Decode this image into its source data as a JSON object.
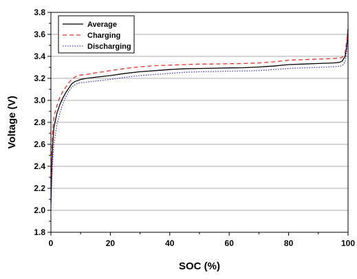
{
  "chart_data": {
    "type": "line",
    "xlabel": "SOC (%)",
    "ylabel": "Voltage (V)",
    "xlim": [
      0,
      100
    ],
    "ylim": [
      1.8,
      3.8
    ],
    "x_ticks": [
      0,
      20,
      40,
      60,
      80,
      100
    ],
    "y_ticks": [
      1.8,
      2.0,
      2.2,
      2.4,
      2.6,
      2.8,
      3.0,
      3.2,
      3.4,
      3.6,
      3.8
    ],
    "x_tick_labels": [
      "0",
      "20",
      "40",
      "60",
      "80",
      "100"
    ],
    "y_tick_labels": [
      "1.8",
      "2.0",
      "2.2",
      "2.4",
      "2.6",
      "2.8",
      "3.0",
      "3.2",
      "3.4",
      "3.6",
      "3.8"
    ],
    "grid": "horizontal",
    "legend_position": "top-left",
    "series": [
      {
        "name": "Average",
        "color": "#000000",
        "style": "solid",
        "points": [
          [
            0,
            2.07
          ],
          [
            0.3,
            2.4
          ],
          [
            0.6,
            2.6
          ],
          [
            1,
            2.75
          ],
          [
            2,
            2.88
          ],
          [
            3,
            2.96
          ],
          [
            4,
            3.02
          ],
          [
            5,
            3.07
          ],
          [
            6,
            3.11
          ],
          [
            7,
            3.15
          ],
          [
            8,
            3.17
          ],
          [
            9,
            3.18
          ],
          [
            10,
            3.19
          ],
          [
            12,
            3.2
          ],
          [
            15,
            3.21
          ],
          [
            20,
            3.225
          ],
          [
            25,
            3.245
          ],
          [
            30,
            3.26
          ],
          [
            35,
            3.27
          ],
          [
            40,
            3.28
          ],
          [
            45,
            3.287
          ],
          [
            50,
            3.29
          ],
          [
            55,
            3.292
          ],
          [
            60,
            3.295
          ],
          [
            65,
            3.297
          ],
          [
            70,
            3.303
          ],
          [
            75,
            3.312
          ],
          [
            80,
            3.325
          ],
          [
            85,
            3.33
          ],
          [
            90,
            3.335
          ],
          [
            95,
            3.34
          ],
          [
            97,
            3.345
          ],
          [
            98,
            3.355
          ],
          [
            99,
            3.4
          ],
          [
            99.6,
            3.5
          ],
          [
            100,
            3.65
          ]
        ]
      },
      {
        "name": "Charging",
        "color": "#e8302a",
        "style": "dashed",
        "points": [
          [
            0,
            2.25
          ],
          [
            0.3,
            2.55
          ],
          [
            0.6,
            2.72
          ],
          [
            1,
            2.85
          ],
          [
            2,
            2.95
          ],
          [
            3,
            3.03
          ],
          [
            4,
            3.08
          ],
          [
            5,
            3.12
          ],
          [
            6,
            3.16
          ],
          [
            7,
            3.19
          ],
          [
            8,
            3.21
          ],
          [
            9,
            3.225
          ],
          [
            10,
            3.23
          ],
          [
            12,
            3.235
          ],
          [
            15,
            3.25
          ],
          [
            20,
            3.27
          ],
          [
            25,
            3.29
          ],
          [
            30,
            3.305
          ],
          [
            35,
            3.315
          ],
          [
            40,
            3.32
          ],
          [
            45,
            3.325
          ],
          [
            50,
            3.33
          ],
          [
            55,
            3.33
          ],
          [
            60,
            3.333
          ],
          [
            65,
            3.335
          ],
          [
            70,
            3.34
          ],
          [
            75,
            3.35
          ],
          [
            80,
            3.365
          ],
          [
            85,
            3.37
          ],
          [
            90,
            3.375
          ],
          [
            95,
            3.38
          ],
          [
            97,
            3.385
          ],
          [
            98,
            3.39
          ],
          [
            99,
            3.43
          ],
          [
            99.6,
            3.55
          ],
          [
            100,
            3.68
          ]
        ]
      },
      {
        "name": "Discharging",
        "color": "#3a3ae0",
        "style": "dotted",
        "points": [
          [
            0,
            2.0
          ],
          [
            0.3,
            2.25
          ],
          [
            0.6,
            2.45
          ],
          [
            1,
            2.6
          ],
          [
            2,
            2.78
          ],
          [
            3,
            2.88
          ],
          [
            4,
            2.97
          ],
          [
            5,
            3.03
          ],
          [
            6,
            3.08
          ],
          [
            7,
            3.12
          ],
          [
            8,
            3.14
          ],
          [
            9,
            3.155
          ],
          [
            10,
            3.16
          ],
          [
            12,
            3.165
          ],
          [
            15,
            3.175
          ],
          [
            20,
            3.19
          ],
          [
            25,
            3.21
          ],
          [
            30,
            3.225
          ],
          [
            35,
            3.235
          ],
          [
            40,
            3.245
          ],
          [
            45,
            3.255
          ],
          [
            50,
            3.26
          ],
          [
            55,
            3.262
          ],
          [
            60,
            3.265
          ],
          [
            65,
            3.267
          ],
          [
            70,
            3.27
          ],
          [
            75,
            3.28
          ],
          [
            80,
            3.29
          ],
          [
            85,
            3.295
          ],
          [
            90,
            3.3
          ],
          [
            95,
            3.305
          ],
          [
            97,
            3.31
          ],
          [
            98,
            3.315
          ],
          [
            99,
            3.35
          ],
          [
            99.6,
            3.45
          ],
          [
            100,
            3.6
          ]
        ]
      }
    ]
  }
}
